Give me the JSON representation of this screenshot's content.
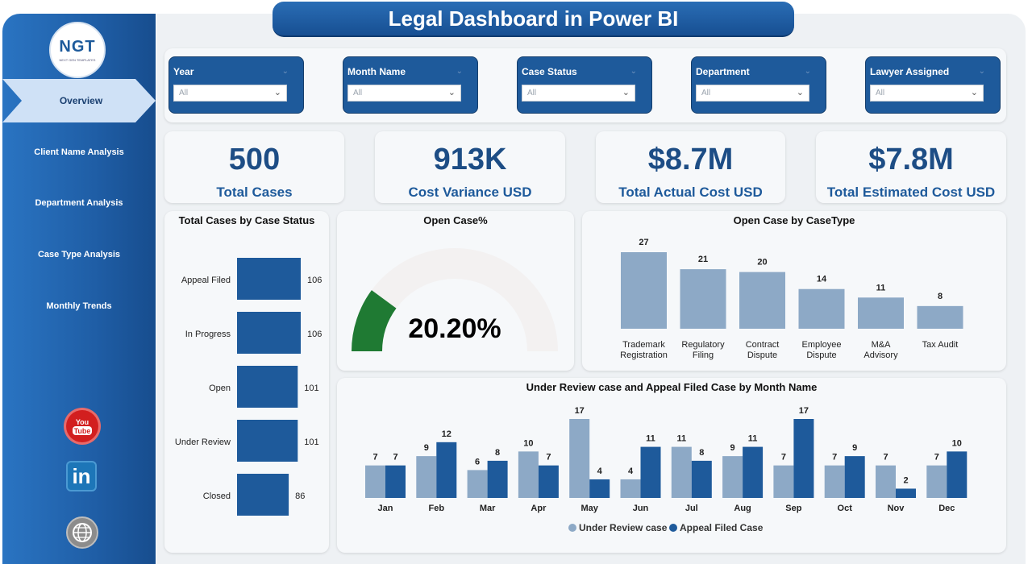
{
  "title": "Legal Dashboard in Power BI",
  "logo": {
    "text": "NGT",
    "subtext": "NEXT GEN TEMPLATES"
  },
  "nav": [
    "Overview",
    "Client Name Analysis",
    "Department Analysis",
    "Case Type Analysis",
    "Monthly Trends"
  ],
  "social": {
    "youtube": "YouTube",
    "linkedin": "in"
  },
  "filters": [
    {
      "label": "Year",
      "value": "All"
    },
    {
      "label": "Month Name",
      "value": "All"
    },
    {
      "label": "Case Status",
      "value": "All"
    },
    {
      "label": "Department",
      "value": "All"
    },
    {
      "label": "Lawyer Assigned",
      "value": "All"
    }
  ],
  "kpis": [
    {
      "value": "500",
      "label": "Total Cases"
    },
    {
      "value": "913K",
      "label": "Cost Variance USD"
    },
    {
      "value": "$8.7M",
      "label": "Total Actual Cost USD"
    },
    {
      "value": "$7.8M",
      "label": "Total Estimated Cost USD"
    }
  ],
  "colors": {
    "dark_blue": "#1e5a9b",
    "light_blue": "#8da9c6",
    "green": "#1f7a33",
    "gauge_bg": "#f3f1f1"
  },
  "chart_data": [
    {
      "type": "bar",
      "orientation": "horizontal",
      "title": "Total Cases by Case Status",
      "categories": [
        "Appeal Filed",
        "In Progress",
        "Open",
        "Under Review",
        "Closed"
      ],
      "values": [
        106,
        106,
        101,
        101,
        86
      ]
    },
    {
      "type": "gauge",
      "title": "Open Case%",
      "value": 20.2,
      "label": "20.20%",
      "min": 0,
      "max": 100
    },
    {
      "type": "bar",
      "title": "Open Case by CaseType",
      "categories": [
        [
          "Trademark",
          "Registration"
        ],
        [
          "Regulatory",
          "Filing"
        ],
        [
          "Contract",
          "Dispute"
        ],
        [
          "Employee",
          "Dispute"
        ],
        [
          "M&A",
          "Advisory"
        ],
        [
          "Tax Audit"
        ]
      ],
      "values": [
        27,
        21,
        20,
        14,
        11,
        8
      ]
    },
    {
      "type": "bar",
      "title": "Under Review case and Appeal Filed Case by Month Name",
      "categories": [
        "Jan",
        "Feb",
        "Mar",
        "Apr",
        "May",
        "Jun",
        "Jul",
        "Aug",
        "Sep",
        "Oct",
        "Nov",
        "Dec"
      ],
      "series": [
        {
          "name": "Under Review case",
          "values": [
            7,
            9,
            6,
            10,
            17,
            4,
            11,
            9,
            7,
            7,
            7,
            7
          ]
        },
        {
          "name": "Appeal Filed Case",
          "values": [
            7,
            12,
            8,
            7,
            4,
            11,
            8,
            11,
            17,
            9,
            2,
            10
          ]
        }
      ],
      "legend": "bottom-center"
    }
  ]
}
